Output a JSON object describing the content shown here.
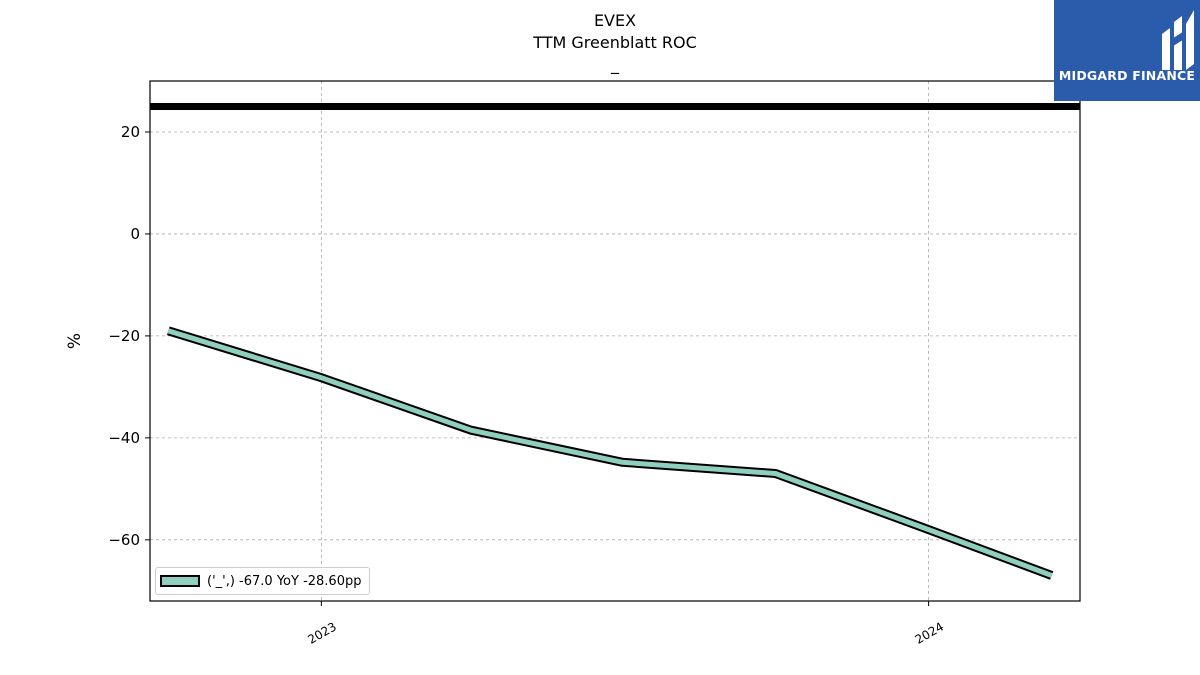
{
  "header": {
    "ticker": "EVEX",
    "metric": "TTM Greenblatt ROC",
    "subtitle": "_"
  },
  "logo": {
    "text": "MIDGARD FINANCE",
    "background": "#2b5bab"
  },
  "legend": {
    "label": "('_',) -67.0 YoY -28.60pp"
  },
  "chart_data": {
    "type": "line",
    "title": "EVEX\nTTM Greenblatt ROC\n_",
    "xlabel": "",
    "ylabel": "%",
    "xlim": [
      "2022-09-20",
      "2024-04-01"
    ],
    "ylim": [
      -72,
      30
    ],
    "yticks": [
      20,
      0,
      -20,
      -40,
      -60
    ],
    "xticks": [
      "2023",
      "2024"
    ],
    "grid": true,
    "legend_position": "lower-left",
    "series": [
      {
        "name": "('_',) -67.0 YoY -28.60pp",
        "color": "#8ecfc0",
        "x": [
          "2022-10-01",
          "2023-01-01",
          "2023-04-01",
          "2023-07-01",
          "2023-10-01",
          "2024-01-01",
          "2024-03-15"
        ],
        "values": [
          -19.0,
          -28.2,
          -38.5,
          -44.8,
          -47.0,
          -58.0,
          -67.0
        ]
      }
    ],
    "reference_lines": [
      {
        "y": 25,
        "color": "#000000"
      }
    ]
  }
}
